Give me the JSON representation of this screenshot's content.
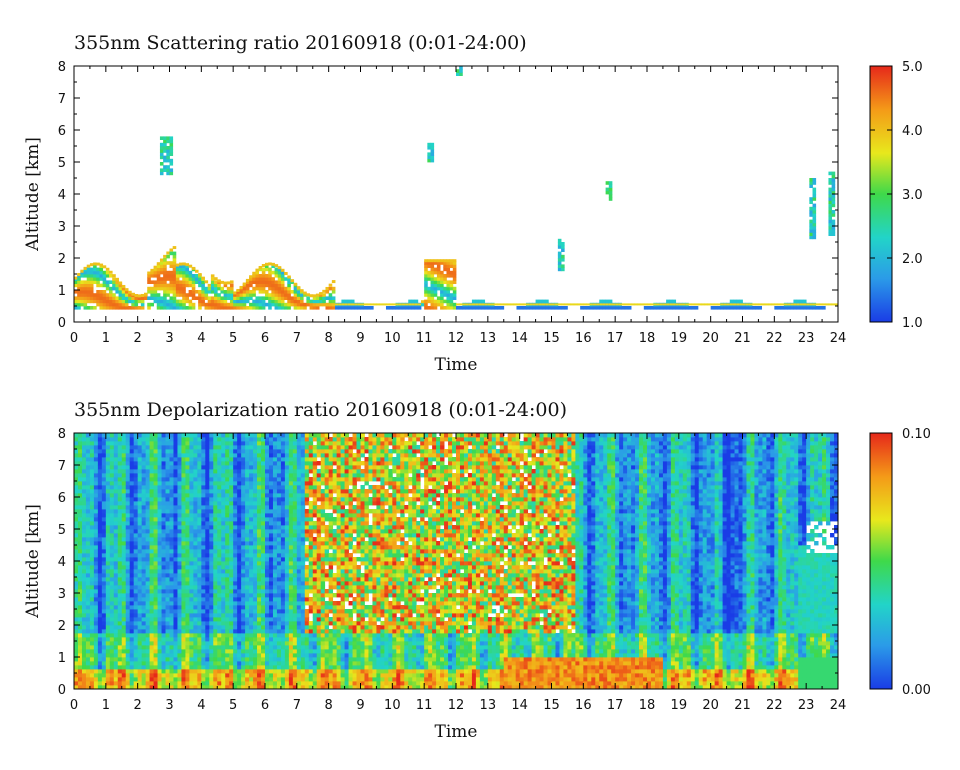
{
  "chart_data": [
    {
      "type": "heatmap",
      "title": "355nm Scattering ratio  20160918 (0:01-24:00)",
      "xlabel": "Time",
      "ylabel": "Altitude [km]",
      "xlim": [
        0,
        24
      ],
      "ylim": [
        0,
        8
      ],
      "x_ticks": [
        "0",
        "1",
        "2",
        "3",
        "4",
        "5",
        "6",
        "7",
        "8",
        "9",
        "10",
        "11",
        "12",
        "13",
        "14",
        "15",
        "16",
        "17",
        "18",
        "19",
        "20",
        "21",
        "22",
        "23",
        "24"
      ],
      "y_ticks": [
        "0",
        "1",
        "2",
        "3",
        "4",
        "5",
        "6",
        "7",
        "8"
      ],
      "colorbar": {
        "range": [
          1.0,
          5.0
        ],
        "ticks": [
          "1.0",
          "2.0",
          "3.0",
          "4.0",
          "5.0"
        ]
      },
      "colormap": [
        "#1a3ce6",
        "#2b9be8",
        "#22d4c8",
        "#3fd94a",
        "#e8e81c",
        "#f49a18",
        "#e6281a"
      ],
      "background": "#ffffff"
    },
    {
      "type": "heatmap",
      "title": "355nm Depolarization ratio  20160918 (0:01-24:00)",
      "xlabel": "Time",
      "ylabel": "Altitude [km]",
      "xlim": [
        0,
        24
      ],
      "ylim": [
        0,
        8
      ],
      "x_ticks": [
        "0",
        "1",
        "2",
        "3",
        "4",
        "5",
        "6",
        "7",
        "8",
        "9",
        "10",
        "11",
        "12",
        "13",
        "14",
        "15",
        "16",
        "17",
        "18",
        "19",
        "20",
        "21",
        "22",
        "23",
        "24"
      ],
      "y_ticks": [
        "0",
        "1",
        "2",
        "3",
        "4",
        "5",
        "6",
        "7",
        "8"
      ],
      "colorbar": {
        "range": [
          0.0,
          0.1
        ],
        "ticks": [
          "0.00",
          "0.10"
        ]
      },
      "colormap": [
        "#1a3ce6",
        "#2b9be8",
        "#22d4c8",
        "#3fd94a",
        "#e8e81c",
        "#f49a18",
        "#e6281a"
      ],
      "background": "#ffffff"
    }
  ]
}
